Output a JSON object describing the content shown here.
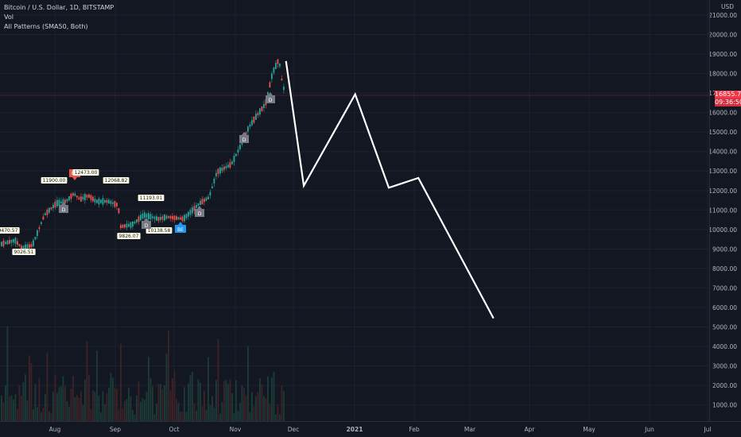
{
  "legend": {
    "symbol": "Bitcoin / U.S. Dollar, 1D, BITSTAMP",
    "vol": "Vol",
    "indicator": "All Patterns (SMA50, Both)"
  },
  "currency": "USD",
  "last_price": {
    "value": "16855.79",
    "countdown": "09:36:50",
    "color": "#f23645"
  },
  "y_axis_ticks": [
    "21000.00",
    "20000.00",
    "19000.00",
    "18000.00",
    "17000.00",
    "16000.00",
    "15000.00",
    "14000.00",
    "13000.00",
    "12000.00",
    "11000.00",
    "10000.00",
    "9000.00",
    "8000.00",
    "7000.00",
    "6000.00",
    "5000.00",
    "4000.00",
    "3000.00",
    "2000.00",
    "1000.00"
  ],
  "x_axis_ticks": [
    "Aug",
    "Sep",
    "Oct",
    "Nov",
    "Dec",
    "2021",
    "Feb",
    "Mar",
    "Apr",
    "May",
    "Jun",
    "Jul"
  ],
  "pattern_labels": [
    {
      "text": "9470.57",
      "kind": "price"
    },
    {
      "text": "9026.51",
      "kind": "price"
    },
    {
      "text": "11900.00",
      "kind": "price"
    },
    {
      "text": "BE",
      "kind": "bearish"
    },
    {
      "text": "12473.00",
      "kind": "price"
    },
    {
      "text": "12068.82",
      "kind": "price"
    },
    {
      "text": "11193.01",
      "kind": "price"
    },
    {
      "text": "9826.07",
      "kind": "price"
    },
    {
      "text": "10138.58",
      "kind": "price"
    },
    {
      "text": "D",
      "kind": "doji"
    },
    {
      "text": "D",
      "kind": "doji"
    },
    {
      "text": "D",
      "kind": "doji"
    },
    {
      "text": "D",
      "kind": "doji"
    },
    {
      "text": "D",
      "kind": "doji"
    },
    {
      "text": "BE",
      "kind": "bullish"
    }
  ],
  "colors": {
    "up": "#26a69a",
    "down": "#ef5350",
    "grid": "#1e222d",
    "drawing": "#ffffff",
    "bull_badge": "#2196f3",
    "doji_badge": "#787b86"
  },
  "drawing": {
    "type": "projection-polyline",
    "points": [
      {
        "date": "2020-11-26",
        "price": 18700
      },
      {
        "date": "2020-12-05",
        "price": 12300
      },
      {
        "date": "2020-12-31",
        "price": 17000
      },
      {
        "date": "2021-01-17",
        "price": 12200
      },
      {
        "date": "2021-02-01",
        "price": 12700
      },
      {
        "date": "2021-03-11",
        "price": 5500
      }
    ]
  }
}
